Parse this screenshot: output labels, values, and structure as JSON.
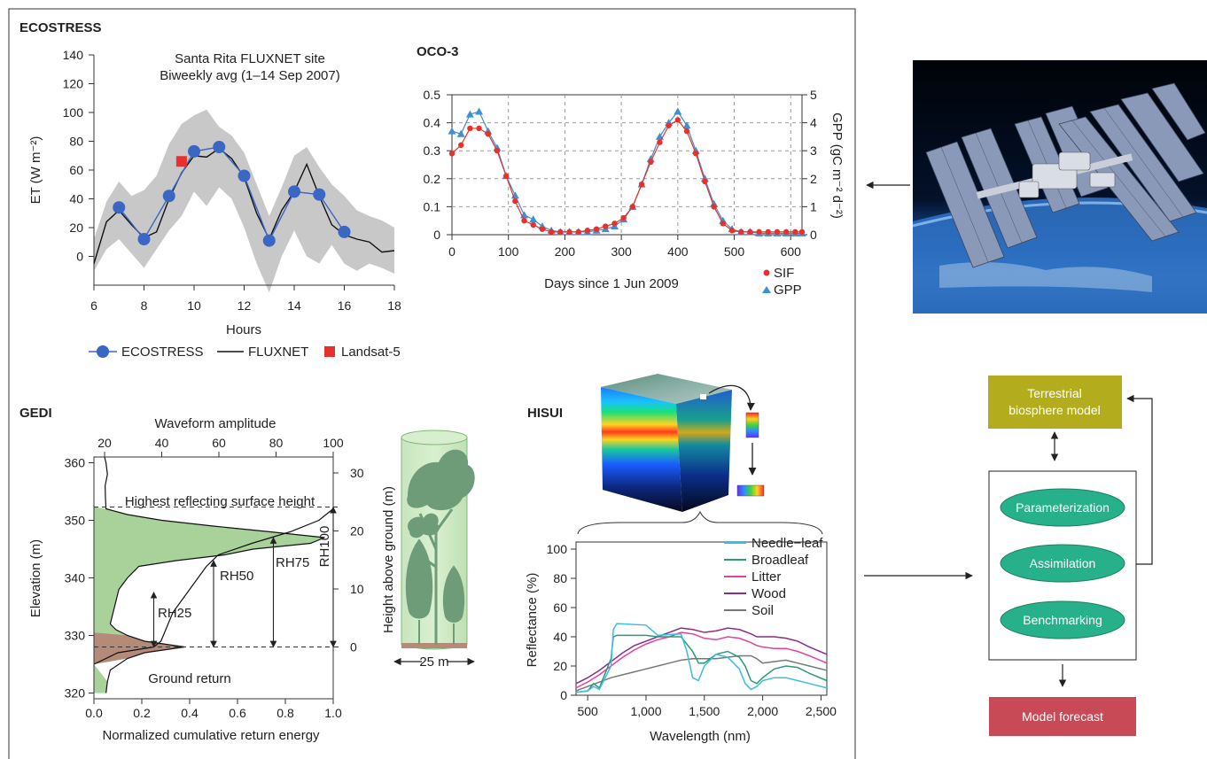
{
  "panels": {
    "ecostress": "ECOSTRESS",
    "oco3": "OCO-3",
    "gedi": "GEDI",
    "hisui": "HISUI"
  },
  "colors": {
    "ecostress_line": "#3a66c4",
    "ecostress_marker": "#3a66c4",
    "fluxnet_line": "#111111",
    "landsat_marker": "#e8312a",
    "sif": "#e8312a",
    "gpp": "#3f8fd2",
    "band_fill": "#c8c8c8",
    "canopy_green": "#a8d29a",
    "ground_brown": "#b48a78",
    "model_box": "#b3ad1e",
    "ellipse_green": "#26b18a",
    "forecast_box": "#c94a57",
    "needle_leaf": "#3bbde0",
    "broadleaf": "#2a9a7a",
    "litter": "#e4419a",
    "wood": "#8a2c8a",
    "soil": "#777777"
  },
  "diagram": {
    "model_box": "Terrestrial biosphere model",
    "ellipses": [
      "Parameterization",
      "Assimilation",
      "Benchmarking"
    ],
    "forecast_box": "Model forecast"
  },
  "illustrations": {
    "iss_photo": "space-station-photo",
    "datacube": "hyperspectral-cube-icon",
    "forest_column": "forest-column-icon"
  },
  "chart_data": [
    {
      "id": "ecostress",
      "type": "line",
      "annotation_lines": [
        "Santa Rita FLUXNET site",
        "Biweekly avg (1–14 Sep 2007)"
      ],
      "xlabel": "Hours",
      "ylabel": "ET (W m⁻²)",
      "xlim": [
        6,
        18
      ],
      "ylim": [
        -20,
        140
      ],
      "xticks": [
        6,
        8,
        10,
        12,
        14,
        16,
        18
      ],
      "yticks": [
        0,
        20,
        40,
        60,
        80,
        100,
        120,
        140
      ],
      "legend": [
        "ECOSTRESS",
        "FLUXNET",
        "Landsat-5"
      ],
      "legend_position": "bottom",
      "band": {
        "x": [
          6,
          6.5,
          7,
          7.5,
          8,
          8.5,
          9,
          9.5,
          10,
          10.5,
          11,
          11.5,
          12,
          12.5,
          13,
          13.5,
          14,
          14.5,
          15,
          15.5,
          16,
          16.5,
          17,
          17.5,
          18
        ],
        "upper": [
          12,
          38,
          52,
          42,
          46,
          56,
          78,
          92,
          98,
          102,
          90,
          84,
          72,
          50,
          28,
          48,
          70,
          76,
          62,
          50,
          42,
          32,
          28,
          25,
          20
        ],
        "lower": [
          -10,
          5,
          12,
          2,
          -8,
          5,
          18,
          28,
          45,
          35,
          48,
          40,
          20,
          -5,
          -25,
          0,
          18,
          0,
          -5,
          8,
          -5,
          -10,
          -5,
          -8,
          -12
        ]
      },
      "series": [
        {
          "name": "ECOSTRESS",
          "x": [
            7,
            8,
            9,
            10,
            11,
            12,
            13,
            14,
            15,
            16
          ],
          "y": [
            34,
            12,
            42,
            73,
            76,
            56,
            11,
            45,
            43,
            17
          ]
        },
        {
          "name": "FLUXNET",
          "x": [
            6,
            6.5,
            7,
            7.5,
            8,
            8.5,
            9,
            9.5,
            10,
            10.5,
            11,
            11.5,
            12,
            12.5,
            13,
            13.5,
            14,
            14.5,
            15,
            15.5,
            16,
            16.5,
            17,
            17.5,
            18
          ],
          "y": [
            -5,
            24,
            32,
            22,
            13,
            17,
            40,
            58,
            70,
            69,
            75,
            68,
            55,
            30,
            12,
            32,
            45,
            64,
            42,
            22,
            15,
            12,
            10,
            3,
            4
          ]
        },
        {
          "name": "Landsat-5",
          "x": [
            9.5
          ],
          "y": [
            66
          ]
        }
      ]
    },
    {
      "id": "oco3",
      "type": "scatter",
      "xlabel": "Days since 1 Jun 2009",
      "ylabel_right": "GPP (gC m⁻² d⁻²)",
      "xlim": [
        0,
        620
      ],
      "ylim_left": [
        0,
        0.5
      ],
      "ylim_right": [
        0,
        5
      ],
      "xticks": [
        0,
        100,
        200,
        300,
        400,
        500,
        600
      ],
      "yticks_left": [
        0,
        0.1,
        0.2,
        0.3,
        0.4,
        0.5
      ],
      "yticks_left_labels": [
        "0",
        "0.1",
        "0.2",
        "0.3",
        "0.4",
        "0.5"
      ],
      "yticks_right": [
        0,
        1,
        2,
        3,
        4,
        5
      ],
      "grid": true,
      "legend": [
        "SIF",
        "GPP"
      ],
      "legend_position": "bottom-right",
      "series": [
        {
          "name": "SIF",
          "axis": "left",
          "x": [
            0,
            16,
            32,
            48,
            64,
            80,
            96,
            112,
            128,
            144,
            160,
            176,
            192,
            208,
            224,
            240,
            256,
            272,
            288,
            304,
            320,
            336,
            352,
            368,
            384,
            400,
            416,
            432,
            448,
            464,
            480,
            496,
            512,
            528,
            544,
            560,
            576,
            592,
            608,
            620
          ],
          "y": [
            0.29,
            0.32,
            0.38,
            0.38,
            0.36,
            0.3,
            0.21,
            0.12,
            0.05,
            0.035,
            0.02,
            0.01,
            0.01,
            0.01,
            0.01,
            0.015,
            0.02,
            0.03,
            0.04,
            0.06,
            0.1,
            0.18,
            0.26,
            0.33,
            0.39,
            0.41,
            0.37,
            0.29,
            0.19,
            0.1,
            0.04,
            0.015,
            0.01,
            0.01,
            0.01,
            0.01,
            0.01,
            0.01,
            0.01,
            0.01
          ]
        },
        {
          "name": "GPP",
          "axis": "right",
          "x": [
            0,
            16,
            32,
            48,
            64,
            80,
            96,
            112,
            128,
            144,
            160,
            176,
            192,
            208,
            224,
            240,
            256,
            272,
            288,
            304,
            320,
            336,
            352,
            368,
            384,
            400,
            416,
            432,
            448,
            464,
            480,
            496,
            512,
            528,
            544,
            560,
            576,
            592,
            608,
            620
          ],
          "y": [
            3.7,
            3.6,
            4.3,
            4.4,
            3.7,
            3.1,
            2.1,
            1.4,
            0.7,
            0.55,
            0.3,
            0.15,
            0.1,
            0.1,
            0.1,
            0.1,
            0.15,
            0.2,
            0.3,
            0.55,
            1.0,
            1.8,
            2.7,
            3.5,
            4.0,
            4.4,
            3.9,
            3.0,
            2.0,
            1.1,
            0.5,
            0.2,
            0.1,
            0.1,
            0.05,
            0.05,
            0.05,
            0.05,
            0.05,
            0.05
          ]
        }
      ]
    },
    {
      "id": "gedi",
      "type": "area",
      "xlabel": "Normalized cumulative return energy",
      "xlabel_top": "Waveform amplitude",
      "ylabel": "Elevation (m)",
      "ylabel_right": "Height above ground (m)",
      "xlim": [
        0,
        1
      ],
      "xlim_top": [
        20,
        100
      ],
      "ylim": [
        319,
        361
      ],
      "ylim_right": [
        -3,
        30
      ],
      "xticks": [
        0,
        0.2,
        0.4,
        0.6,
        0.8,
        1.0
      ],
      "xticks_labels": [
        "0.0",
        "0.2",
        "0.4",
        "0.6",
        "0.8",
        "1.0"
      ],
      "xticks_top": [
        20,
        40,
        60,
        80,
        100
      ],
      "yticks": [
        320,
        330,
        340,
        350,
        360
      ],
      "yticks_right": [
        0,
        10,
        20,
        30
      ],
      "annotations": [
        "Highest reflecting surface height",
        "Ground return",
        "RH25",
        "RH50",
        "RH75",
        "RH100",
        "25 m"
      ],
      "waveform": {
        "elevation": [
          320,
          322,
          324,
          326,
          327,
          328,
          329,
          330,
          331,
          332,
          334,
          336,
          338,
          340,
          342,
          343,
          344,
          345,
          346,
          347,
          348,
          349,
          350,
          351,
          352,
          354,
          356,
          358,
          360,
          361
        ],
        "amplitude": [
          20.5,
          21,
          22,
          28,
          34,
          48,
          34,
          28,
          24,
          22,
          23,
          24,
          25,
          28,
          32,
          45,
          62,
          72,
          92,
          97,
          78,
          58,
          40,
          28,
          20.5,
          20.3,
          20.2,
          21,
          20.5,
          20
        ]
      },
      "cumulative": {
        "elevation": [
          325,
          327,
          328,
          329,
          331,
          334,
          338,
          342,
          344,
          346,
          348,
          350,
          352
        ],
        "energy": [
          0.0,
          0.1,
          0.25,
          0.28,
          0.3,
          0.33,
          0.4,
          0.47,
          0.52,
          0.66,
          0.82,
          0.94,
          1.0
        ]
      },
      "reference_elevations": {
        "highest_surface": 352.3,
        "ground": 328
      }
    },
    {
      "id": "hisui",
      "type": "line",
      "xlabel": "Wavelength (nm)",
      "ylabel": "Reflectance (%)",
      "xlim": [
        400,
        2550
      ],
      "ylim": [
        0,
        100
      ],
      "xticks": [
        500,
        1000,
        1500,
        2000,
        2500
      ],
      "xticks_labels": [
        "500",
        "1,000",
        "1,500",
        "2,000",
        "2,500"
      ],
      "yticks": [
        0,
        20,
        40,
        60,
        80,
        100
      ],
      "legend": [
        "Needle−leaf",
        "Broadleaf",
        "Litter",
        "Wood",
        "Soil"
      ],
      "legend_position": "top-right",
      "series": [
        {
          "name": "Needle−leaf",
          "x": [
            400,
            500,
            550,
            600,
            700,
            720,
            750,
            1000,
            1100,
            1300,
            1350,
            1400,
            1450,
            1500,
            1600,
            1700,
            1800,
            1850,
            1900,
            1950,
            2000,
            2100,
            2200,
            2300,
            2400,
            2550
          ],
          "y": [
            2,
            3,
            6,
            4,
            20,
            45,
            49,
            48,
            41,
            42,
            30,
            12,
            10,
            20,
            28,
            26,
            18,
            8,
            4,
            6,
            10,
            12,
            12,
            10,
            8,
            5
          ]
        },
        {
          "name": "Broadleaf",
          "x": [
            400,
            500,
            550,
            600,
            700,
            720,
            750,
            1000,
            1100,
            1300,
            1400,
            1450,
            1500,
            1600,
            1700,
            1800,
            1850,
            1900,
            1950,
            2000,
            2100,
            2200,
            2300,
            2400,
            2550
          ],
          "y": [
            2,
            3,
            8,
            5,
            25,
            40,
            41,
            41,
            40,
            40,
            30,
            22,
            22,
            28,
            30,
            26,
            20,
            10,
            8,
            12,
            18,
            20,
            19,
            15,
            10
          ]
        },
        {
          "name": "Litter",
          "x": [
            400,
            500,
            600,
            700,
            800,
            900,
            1000,
            1100,
            1200,
            1300,
            1400,
            1500,
            1600,
            1700,
            1800,
            1900,
            1950,
            2000,
            2100,
            2200,
            2300,
            2400,
            2550
          ],
          "y": [
            5,
            9,
            14,
            20,
            26,
            31,
            35,
            38,
            40,
            43,
            42,
            39,
            38,
            40,
            39,
            36,
            34,
            33,
            32,
            32,
            30,
            27,
            22
          ]
        },
        {
          "name": "Wood",
          "x": [
            400,
            500,
            600,
            700,
            800,
            900,
            1000,
            1100,
            1200,
            1300,
            1400,
            1500,
            1600,
            1700,
            1800,
            1900,
            1950,
            2000,
            2100,
            2200,
            2300,
            2400,
            2550
          ],
          "y": [
            8,
            12,
            17,
            23,
            29,
            34,
            37,
            40,
            43,
            46,
            45,
            43,
            44,
            46,
            45,
            42,
            40,
            40,
            40,
            39,
            37,
            33,
            28
          ]
        },
        {
          "name": "Soil",
          "x": [
            400,
            500,
            600,
            700,
            800,
            900,
            1000,
            1100,
            1200,
            1300,
            1400,
            1500,
            1600,
            1700,
            1800,
            1900,
            1950,
            2000,
            2100,
            2200,
            2300,
            2400,
            2550
          ],
          "y": [
            3,
            6,
            9,
            12,
            14,
            16,
            18,
            20,
            22,
            24,
            25,
            25,
            25,
            26,
            27,
            27,
            25,
            22,
            23,
            24,
            22,
            20,
            17
          ]
        }
      ]
    }
  ]
}
